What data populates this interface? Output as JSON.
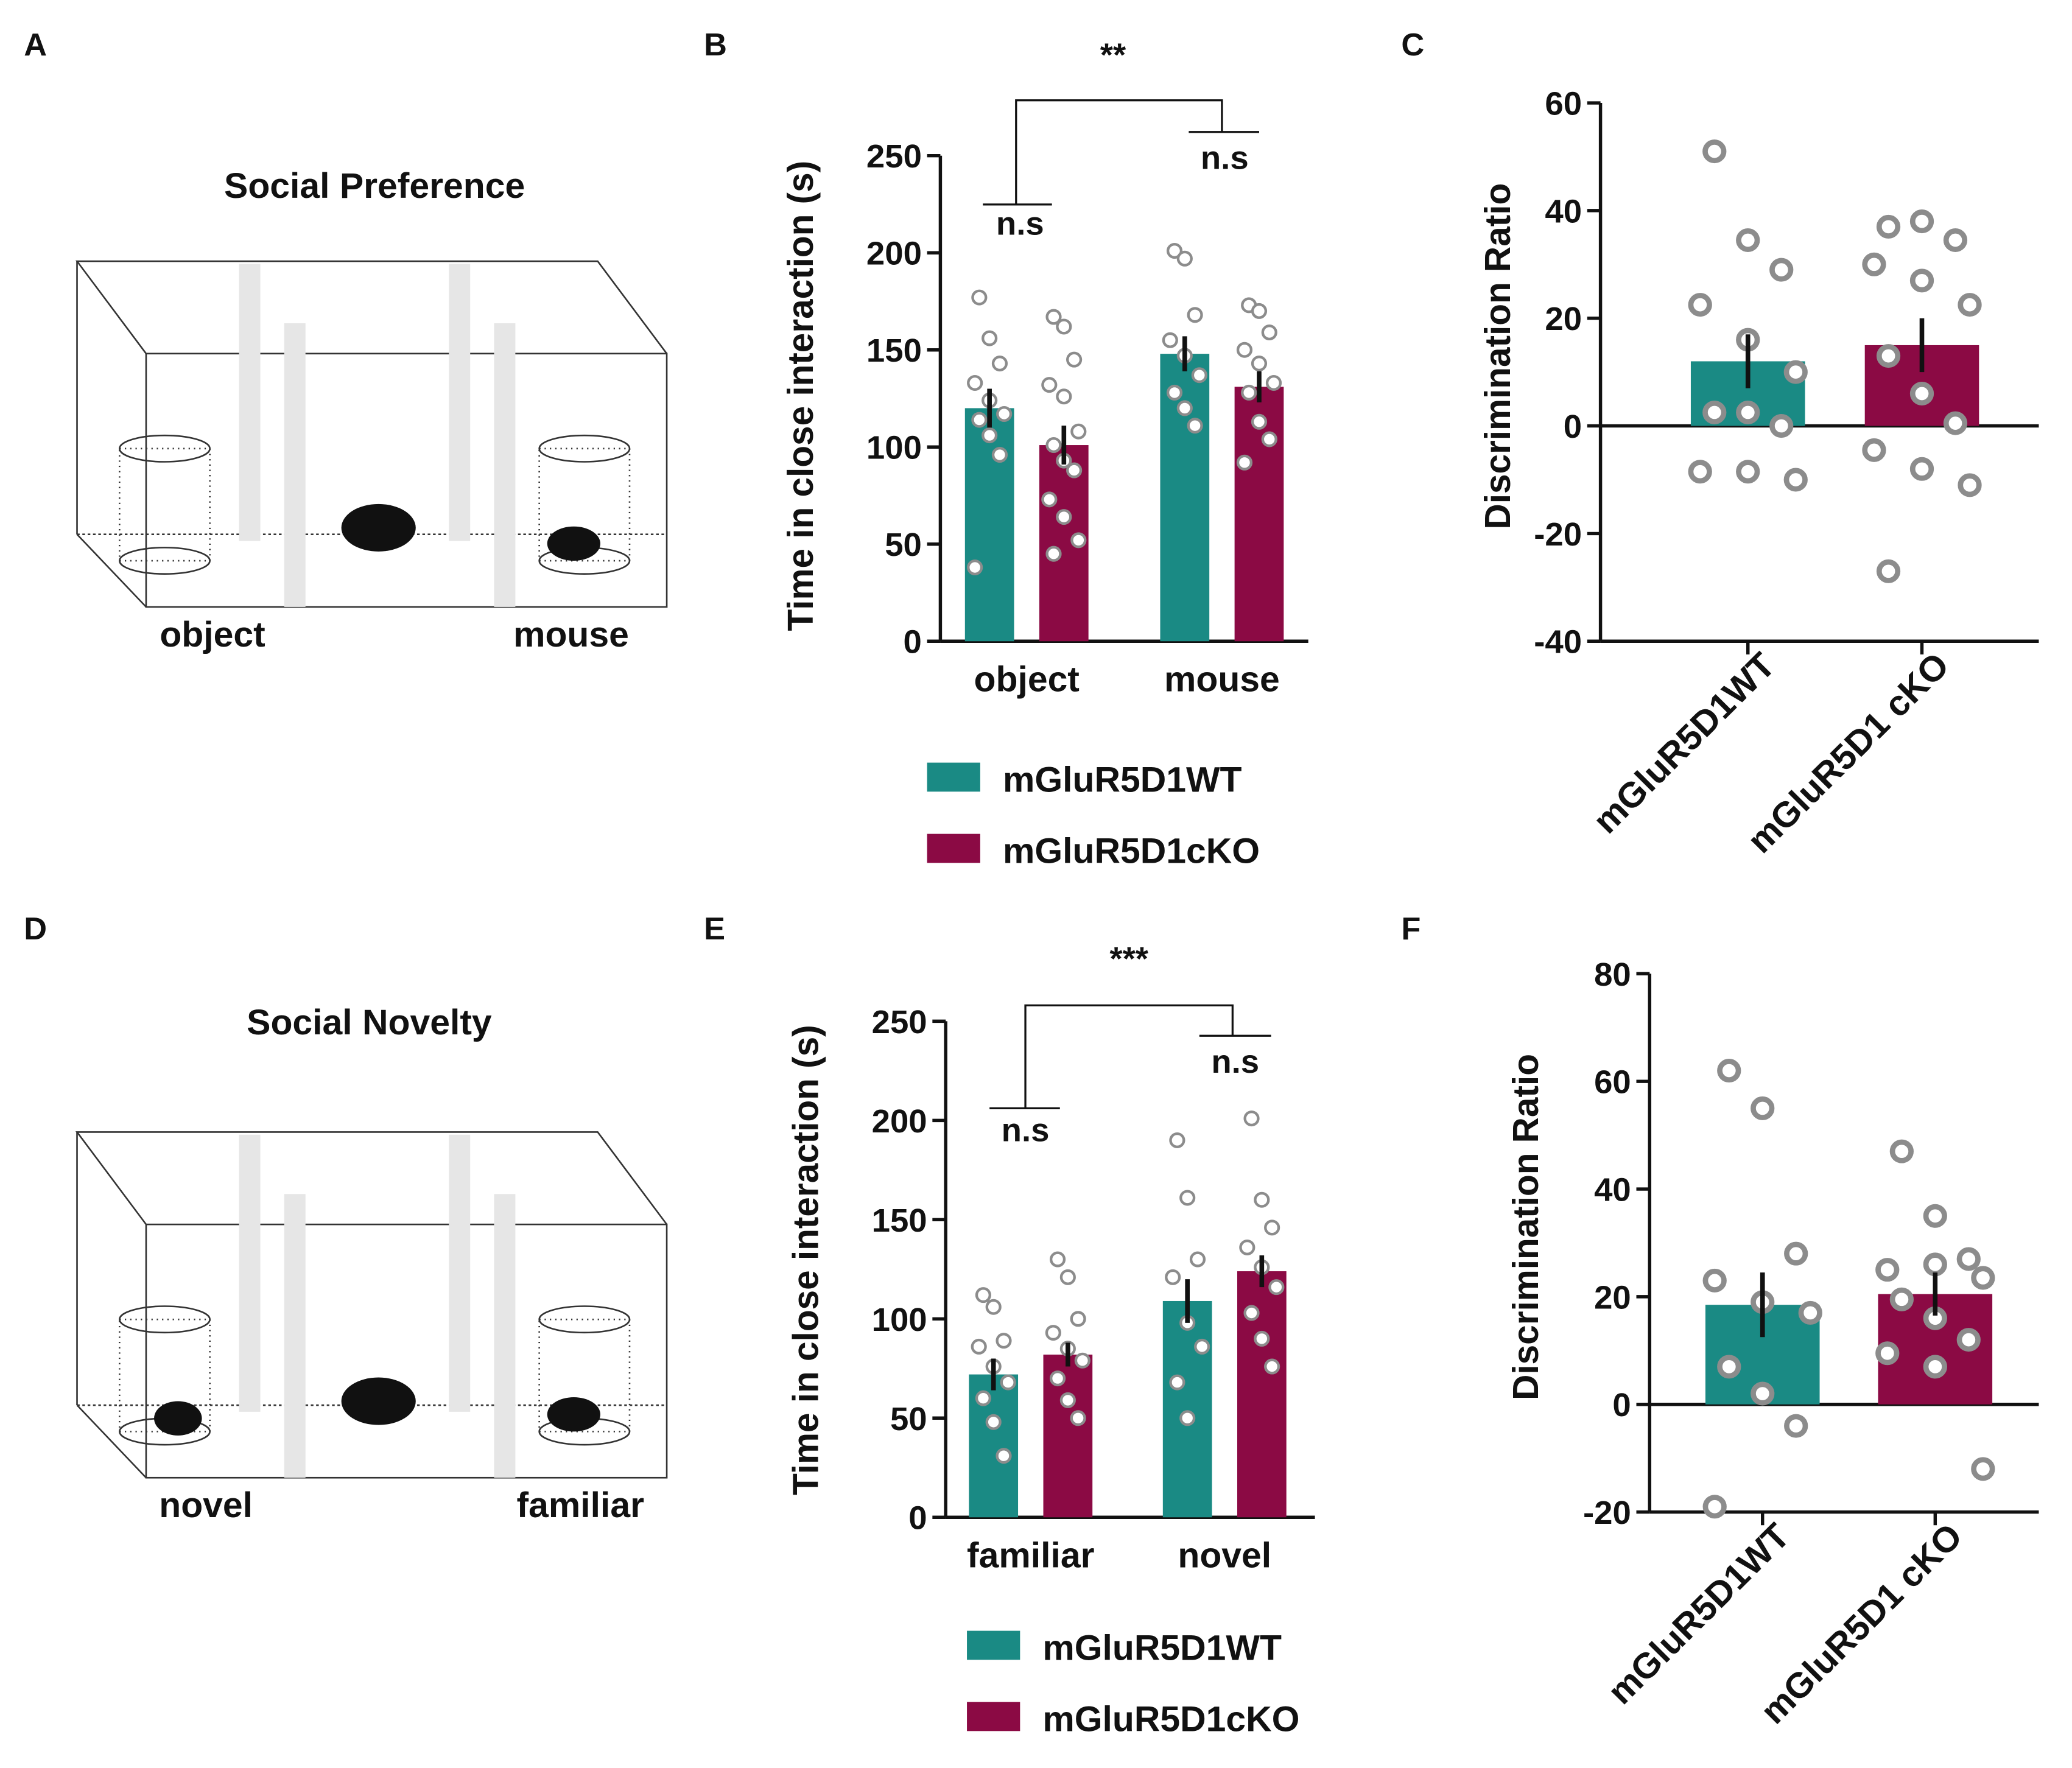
{
  "panel_labels": [
    "A",
    "B",
    "C",
    "D",
    "E",
    "F"
  ],
  "diagrams": [
    {
      "title": "Social Preference",
      "labels": [
        "object",
        "mouse"
      ]
    },
    {
      "title": "Social Novelty",
      "labels": [
        "novel",
        "familiar"
      ]
    }
  ],
  "chart_data": [
    {
      "type": "bar",
      "ylabel": "Time in close interaction (s)",
      "categories": [
        "object",
        "mouse"
      ],
      "ylim": [
        0,
        250
      ],
      "yticks": [
        0,
        50,
        100,
        150,
        200,
        250
      ],
      "annotations": [
        "**",
        "n.s",
        "n.s"
      ],
      "series": [
        {
          "name": "mGluR5D1WT",
          "color": "#1a8a84",
          "values": [
            120,
            148
          ],
          "errors": [
            10,
            9
          ],
          "points": [
            [
              177,
              156,
              143,
              133,
              124,
              117,
              114,
              106,
              96,
              38
            ],
            [
              201,
              197,
              168,
              155,
              147,
              137,
              128,
              120,
              111
            ]
          ]
        },
        {
          "name": "mGluR5D1cKO",
          "color": "#8b0a44",
          "values": [
            101,
            131
          ],
          "errors": [
            10,
            8
          ],
          "points": [
            [
              167,
              162,
              145,
              132,
              126,
              108,
              101,
              93,
              88,
              73,
              64,
              52,
              45
            ],
            [
              173,
              170,
              159,
              150,
              143,
              133,
              128,
              113,
              104,
              92
            ]
          ]
        }
      ]
    },
    {
      "type": "bar",
      "ylabel": "Discrimination Ratio",
      "categories": [
        "mGluR5D1WT",
        "mGluR5D1 cKO"
      ],
      "ylim": [
        -40,
        60
      ],
      "yticks": [
        -40,
        -20,
        0,
        20,
        40,
        60
      ],
      "colors": [
        "#1a8a84",
        "#8b0a44"
      ],
      "values": [
        12,
        15
      ],
      "errors": [
        5,
        5
      ],
      "points": [
        [
          51,
          34.5,
          29,
          22.5,
          16,
          10,
          2.5,
          2.5,
          0,
          -8.5,
          -8.5,
          -10
        ],
        [
          37,
          38,
          34.5,
          30,
          27,
          22.5,
          13,
          6,
          0.5,
          -4.5,
          -8,
          -11,
          -27
        ]
      ]
    },
    {
      "type": "bar",
      "ylabel": "Time in close interaction (s)",
      "categories": [
        "familiar",
        "novel"
      ],
      "ylim": [
        0,
        250
      ],
      "yticks": [
        0,
        50,
        100,
        150,
        200,
        250
      ],
      "annotations": [
        "***",
        "n.s",
        "n.s"
      ],
      "series": [
        {
          "name": "mGluR5D1WT",
          "color": "#1a8a84",
          "values": [
            72,
            109
          ],
          "errors": [
            8,
            11
          ],
          "points": [
            [
              112,
              106,
              89,
              86,
              76,
              68,
              60,
              48,
              31
            ],
            [
              190,
              161,
              130,
              121,
              98,
              86,
              68,
              50
            ]
          ]
        },
        {
          "name": "mGluR5D1cKO",
          "color": "#8b0a44",
          "values": [
            82,
            124
          ],
          "errors": [
            6,
            8
          ],
          "points": [
            [
              130,
              121,
              100,
              93,
              85,
              79,
              70,
              59,
              50
            ],
            [
              201,
              160,
              146,
              136,
              126,
              116,
              103,
              90,
              76
            ]
          ]
        }
      ]
    },
    {
      "type": "bar",
      "ylabel": "Discrimination Ratio",
      "categories": [
        "mGluR5D1WT",
        "mGluR5D1 cKO"
      ],
      "ylim": [
        -20,
        80
      ],
      "yticks": [
        -20,
        0,
        20,
        40,
        60,
        80
      ],
      "colors": [
        "#1a8a84",
        "#8b0a44"
      ],
      "values": [
        18.5,
        20.5
      ],
      "errors": [
        6,
        4
      ],
      "points": [
        [
          62,
          55,
          28,
          23,
          19,
          17,
          7,
          2,
          -4,
          -19
        ],
        [
          47,
          35,
          27,
          25,
          26,
          23.5,
          19.5,
          16,
          12,
          9.5,
          7,
          -12
        ]
      ]
    }
  ]
}
